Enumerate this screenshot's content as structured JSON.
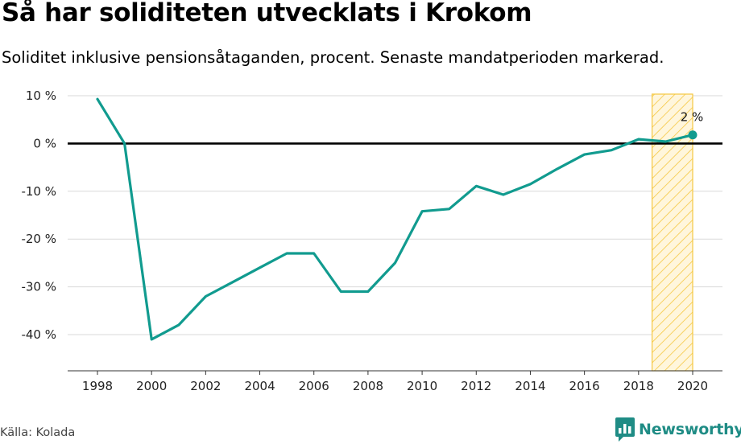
{
  "title": "Så har soliditeten utvecklats i Krokom",
  "subtitle": "Soliditet inklusive pensionsåtaganden, procent. Senaste mandatperioden markerad.",
  "source": "Källa: Kolada",
  "brand": "Newsworthy",
  "colors": {
    "line": "#119b8f",
    "highlight_stroke": "#f5c842",
    "highlight_fill": "#fff3d6",
    "brand": "#1f8c85"
  },
  "chart_data": {
    "type": "line",
    "title": "Så har soliditeten utvecklats i Krokom",
    "subtitle": "Soliditet inklusive pensionsåtaganden, procent. Senaste mandatperioden markerad.",
    "xlabel": "",
    "ylabel": "",
    "xlim": [
      1997,
      2021
    ],
    "ylim": [
      -47,
      10
    ],
    "x_ticks": [
      1998,
      2000,
      2002,
      2004,
      2006,
      2008,
      2010,
      2012,
      2014,
      2016,
      2018,
      2020
    ],
    "x_tick_labels": [
      "1998",
      "2000",
      "2002",
      "2004",
      "2006",
      "2008",
      "2010",
      "2012",
      "2014",
      "2016",
      "2018",
      "2020"
    ],
    "y_ticks": [
      10,
      0,
      -10,
      -20,
      -30,
      -40
    ],
    "y_tick_labels": [
      "10 %",
      "0 %",
      "-10 %",
      "-20 %",
      "-30 %",
      "-40 %"
    ],
    "grid": "horizontal",
    "zero_line": true,
    "highlight_range": [
      2018.5,
      2020
    ],
    "series": [
      {
        "x": [
          1998,
          1999,
          2000,
          2001,
          2002,
          2003,
          2004,
          2005,
          2006,
          2007,
          2008,
          2009,
          2010,
          2011,
          2012,
          2013,
          2014,
          2015,
          2016,
          2017,
          2018,
          2019,
          2020
        ],
        "values": [
          9.3,
          0,
          -41,
          -38,
          -32,
          -29,
          -26,
          -23,
          -23,
          -31,
          -31,
          -25,
          -14.2,
          -13.7,
          -8.9,
          -10.7,
          -8.5,
          -5.3,
          -2.3,
          -1.4,
          0.9,
          0.4,
          1.8
        ]
      }
    ],
    "end_label": "2 %"
  }
}
